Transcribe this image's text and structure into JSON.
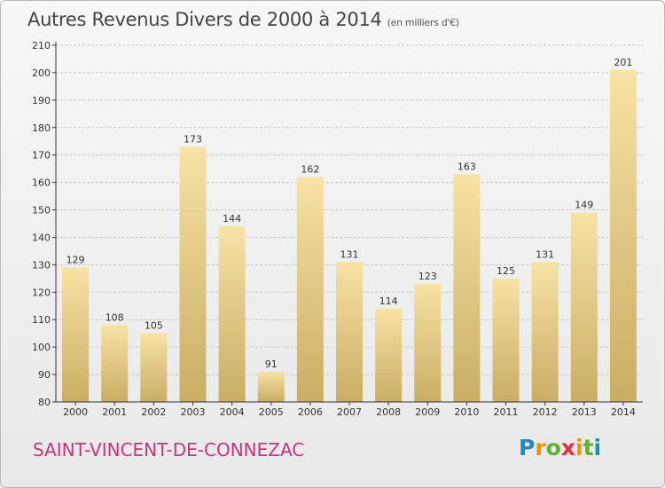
{
  "title": "Autres Revenus Divers de 2000 à 2014",
  "subtitle": "(en milliers d'€)",
  "city": "SAINT-VINCENT-DE-CONNEZAC",
  "logo": {
    "letters": [
      "P",
      "r",
      "o",
      "x",
      "i",
      "t",
      "i"
    ],
    "colors": [
      "#1e88c8",
      "#f29400",
      "#5fb233",
      "#e5303a",
      "#f29400",
      "#5fb233",
      "#1e88c8"
    ]
  },
  "colors": {
    "bar_top": "#f7e3a5",
    "bar_bottom": "#c9ad63",
    "axis": "#333333",
    "grid": "#c8c8c8",
    "city": "#c8347a"
  },
  "chart_data": {
    "type": "bar",
    "categories": [
      "2000",
      "2001",
      "2002",
      "2003",
      "2004",
      "2005",
      "2006",
      "2007",
      "2008",
      "2009",
      "2010",
      "2011",
      "2012",
      "2013",
      "2014"
    ],
    "values": [
      129,
      108,
      105,
      173,
      144,
      91,
      162,
      131,
      114,
      123,
      163,
      125,
      131,
      149,
      201
    ],
    "ylim": [
      80,
      210
    ],
    "yticks": [
      80,
      90,
      100,
      110,
      120,
      130,
      140,
      150,
      160,
      170,
      180,
      190,
      200,
      210
    ],
    "grid": true
  }
}
